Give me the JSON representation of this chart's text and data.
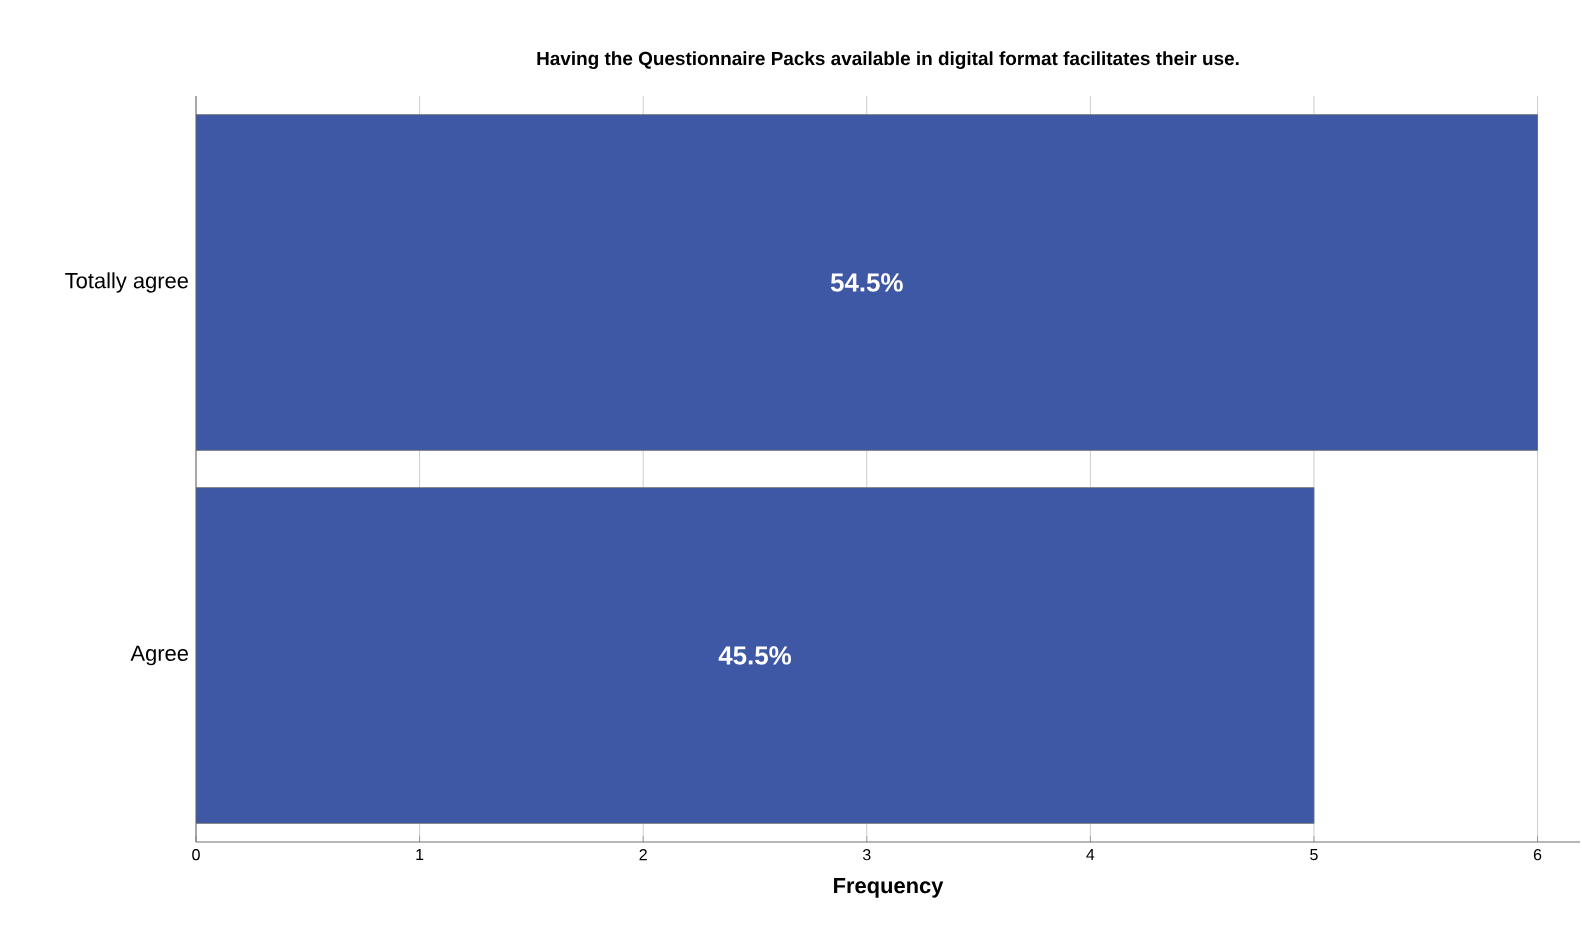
{
  "chart_data": {
    "type": "bar",
    "orientation": "horizontal",
    "title": "Having the Questionnaire Packs available in digital format facilitates their use.",
    "xlabel": "Frequency",
    "categories": [
      "Totally agree",
      "Agree"
    ],
    "values": [
      6,
      5
    ],
    "color": "#3f58a6",
    "annotations": [
      "54.5%",
      "45.5%"
    ],
    "xlim": [
      0,
      6.19
    ],
    "xticks": [
      0,
      1,
      2,
      3,
      4,
      5,
      6
    ],
    "grid": "x"
  }
}
